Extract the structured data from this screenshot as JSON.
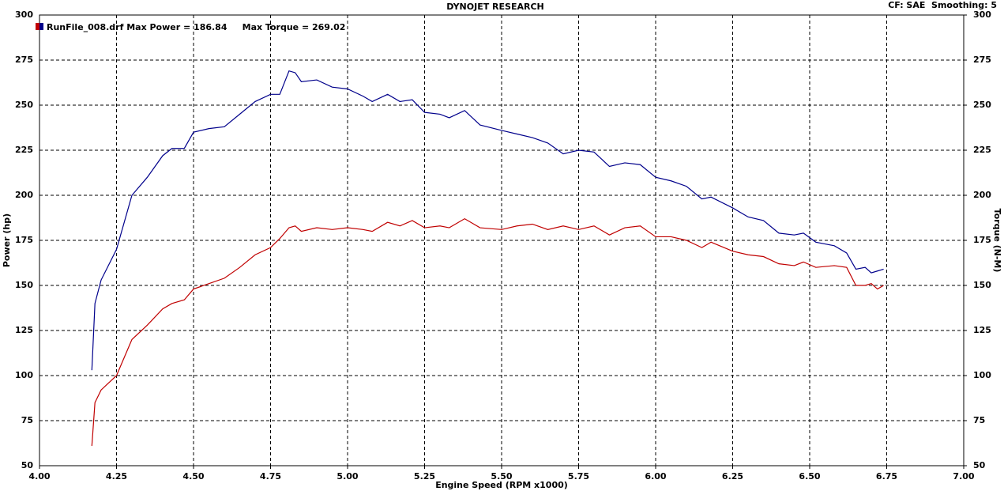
{
  "chart_data": {
    "type": "line",
    "title": "DYNOJET RESEARCH",
    "subtitle": "CF: SAE  Smoothing: 5",
    "legend": "RunFile_008.drf Max Power = 186.84     Max Torque = 269.02",
    "x_label": "Engine Speed (RPM x1000)",
    "y_label": "Power (hp)",
    "y2_label": "Torque (N-M)",
    "grid": true,
    "xlim": [
      4,
      7
    ],
    "xticks": [
      {
        "value": 4,
        "label": "4.00"
      },
      {
        "value": 4.25,
        "label": "4.25"
      },
      {
        "value": 4.5,
        "label": "4.50"
      },
      {
        "value": 4.75,
        "label": "4.75"
      },
      {
        "value": 5,
        "label": "5.00"
      },
      {
        "value": 5.25,
        "label": "5.25"
      },
      {
        "value": 5.5,
        "label": "5.50"
      },
      {
        "value": 5.75,
        "label": "5.75"
      },
      {
        "value": 6,
        "label": "6.00"
      },
      {
        "value": 6.25,
        "label": "6.25"
      },
      {
        "value": 6.5,
        "label": "6.50"
      },
      {
        "value": 6.75,
        "label": "6.75"
      },
      {
        "value": 7,
        "label": "7.00"
      }
    ],
    "ylim": [
      50,
      300
    ],
    "yticks": [
      50,
      75,
      100,
      125,
      150,
      175,
      200,
      225,
      250,
      275,
      300
    ],
    "y2lim": [
      50,
      300
    ],
    "y2ticks": [
      50,
      75,
      100,
      125,
      150,
      175,
      200,
      225,
      250,
      275,
      300
    ],
    "x": [
      4.17,
      4.18,
      4.2,
      4.25,
      4.3,
      4.35,
      4.4,
      4.43,
      4.47,
      4.5,
      4.55,
      4.6,
      4.65,
      4.7,
      4.75,
      4.78,
      4.81,
      4.83,
      4.85,
      4.9,
      4.95,
      5,
      5.05,
      5.08,
      5.13,
      5.17,
      5.21,
      5.25,
      5.3,
      5.33,
      5.38,
      5.43,
      5.5,
      5.55,
      5.6,
      5.65,
      5.7,
      5.75,
      5.8,
      5.85,
      5.9,
      5.95,
      6,
      6.05,
      6.1,
      6.15,
      6.18,
      6.25,
      6.3,
      6.35,
      6.4,
      6.45,
      6.48,
      6.52,
      6.58,
      6.62,
      6.65,
      6.68,
      6.7,
      6.72,
      6.74
    ],
    "series": [
      {
        "color": "#c00000",
        "axis": "y",
        "values": [
          61,
          85,
          92,
          100,
          120,
          128,
          137,
          140,
          142,
          148,
          151,
          154,
          160,
          167,
          171,
          176,
          182,
          183,
          180,
          182,
          181,
          182,
          181,
          180,
          185,
          183,
          186,
          182,
          183,
          182,
          187,
          182,
          181,
          183,
          184,
          181,
          183,
          181,
          183,
          178,
          182,
          183,
          177,
          177,
          175,
          171,
          174,
          169,
          167,
          166,
          162,
          161,
          163,
          160,
          161,
          160,
          150,
          150,
          151,
          148,
          150
        ]
      },
      {
        "color": "#00008b",
        "axis": "y2",
        "values": [
          103,
          140,
          153,
          170,
          200,
          210,
          222,
          226,
          226,
          235,
          237,
          238,
          245,
          252,
          256,
          256,
          269,
          268,
          263,
          264,
          260,
          259,
          255,
          252,
          256,
          252,
          253,
          246,
          245,
          243,
          247,
          239,
          236,
          234,
          232,
          229,
          223,
          225,
          224,
          216,
          218,
          217,
          210,
          208,
          205,
          198,
          199,
          193,
          188,
          186,
          179,
          178,
          179,
          174,
          172,
          168,
          159,
          160,
          157,
          158,
          159
        ]
      }
    ]
  }
}
